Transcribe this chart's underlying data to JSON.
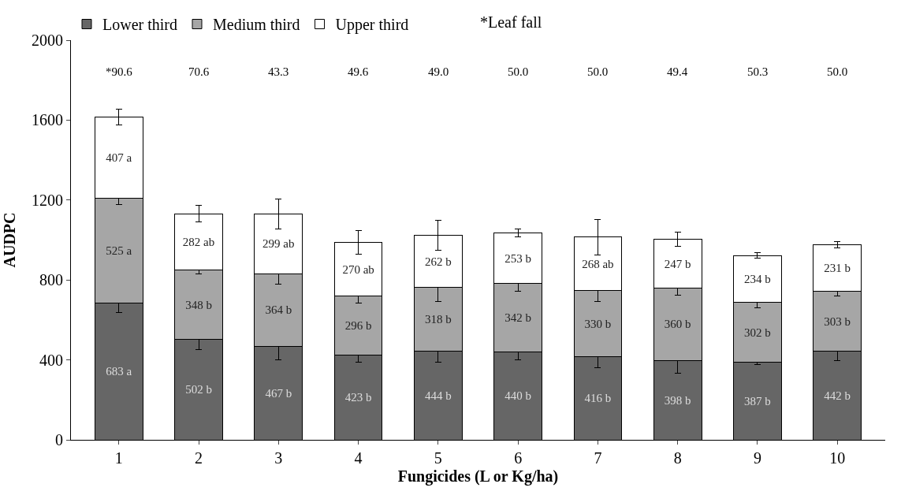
{
  "chart_data": {
    "type": "bar",
    "stacked": true,
    "xlabel": "Fungicides (L or Kg/ha)",
    "ylabel": "AUDPC",
    "categories": [
      "1",
      "2",
      "3",
      "4",
      "5",
      "6",
      "7",
      "8",
      "9",
      "10"
    ],
    "series": [
      {
        "name": "Lower third",
        "color": "#666666",
        "values": [
          683,
          502,
          467,
          423,
          444,
          440,
          416,
          398,
          387,
          442
        ],
        "errors": [
          45,
          50,
          65,
          35,
          55,
          40,
          55,
          65,
          12,
          45
        ],
        "value_labels": [
          "683 a",
          "502 b",
          "467 b",
          "423 b",
          "444 b",
          "440 b",
          "416 b",
          "398 b",
          "387 b",
          "442 b"
        ]
      },
      {
        "name": "Medium third",
        "color": "#a6a6a6",
        "values": [
          525,
          348,
          364,
          296,
          318,
          342,
          330,
          360,
          302,
          303
        ],
        "errors": [
          30,
          20,
          50,
          35,
          70,
          40,
          55,
          35,
          30,
          25
        ],
        "value_labels": [
          "525 a",
          "348 b",
          "364 b",
          "296 b",
          "318 b",
          "342 b",
          "330 b",
          "360 b",
          "302 b",
          "303 b"
        ]
      },
      {
        "name": "Upper third",
        "color": "#ffffff",
        "values": [
          407,
          282,
          299,
          270,
          262,
          253,
          268,
          247,
          234,
          231
        ],
        "errors": [
          40,
          40,
          75,
          60,
          75,
          20,
          90,
          35,
          12,
          15
        ],
        "value_labels": [
          "407 a",
          "282 ab",
          "299 ab",
          "270 ab",
          "262 b",
          "253 b",
          "268 ab",
          "247 b",
          "234 b",
          "231 b"
        ]
      }
    ],
    "ylim": [
      0,
      2000
    ],
    "yticks": [
      0,
      400,
      800,
      1200,
      1600,
      2000
    ],
    "legend": "top",
    "annotations": [
      "*Leaf fall",
      "*90.6",
      "70.6",
      "43.3",
      "49.6",
      "49.0",
      "50.0",
      "50.0",
      "49.4",
      "50.3",
      "50.0"
    ]
  }
}
